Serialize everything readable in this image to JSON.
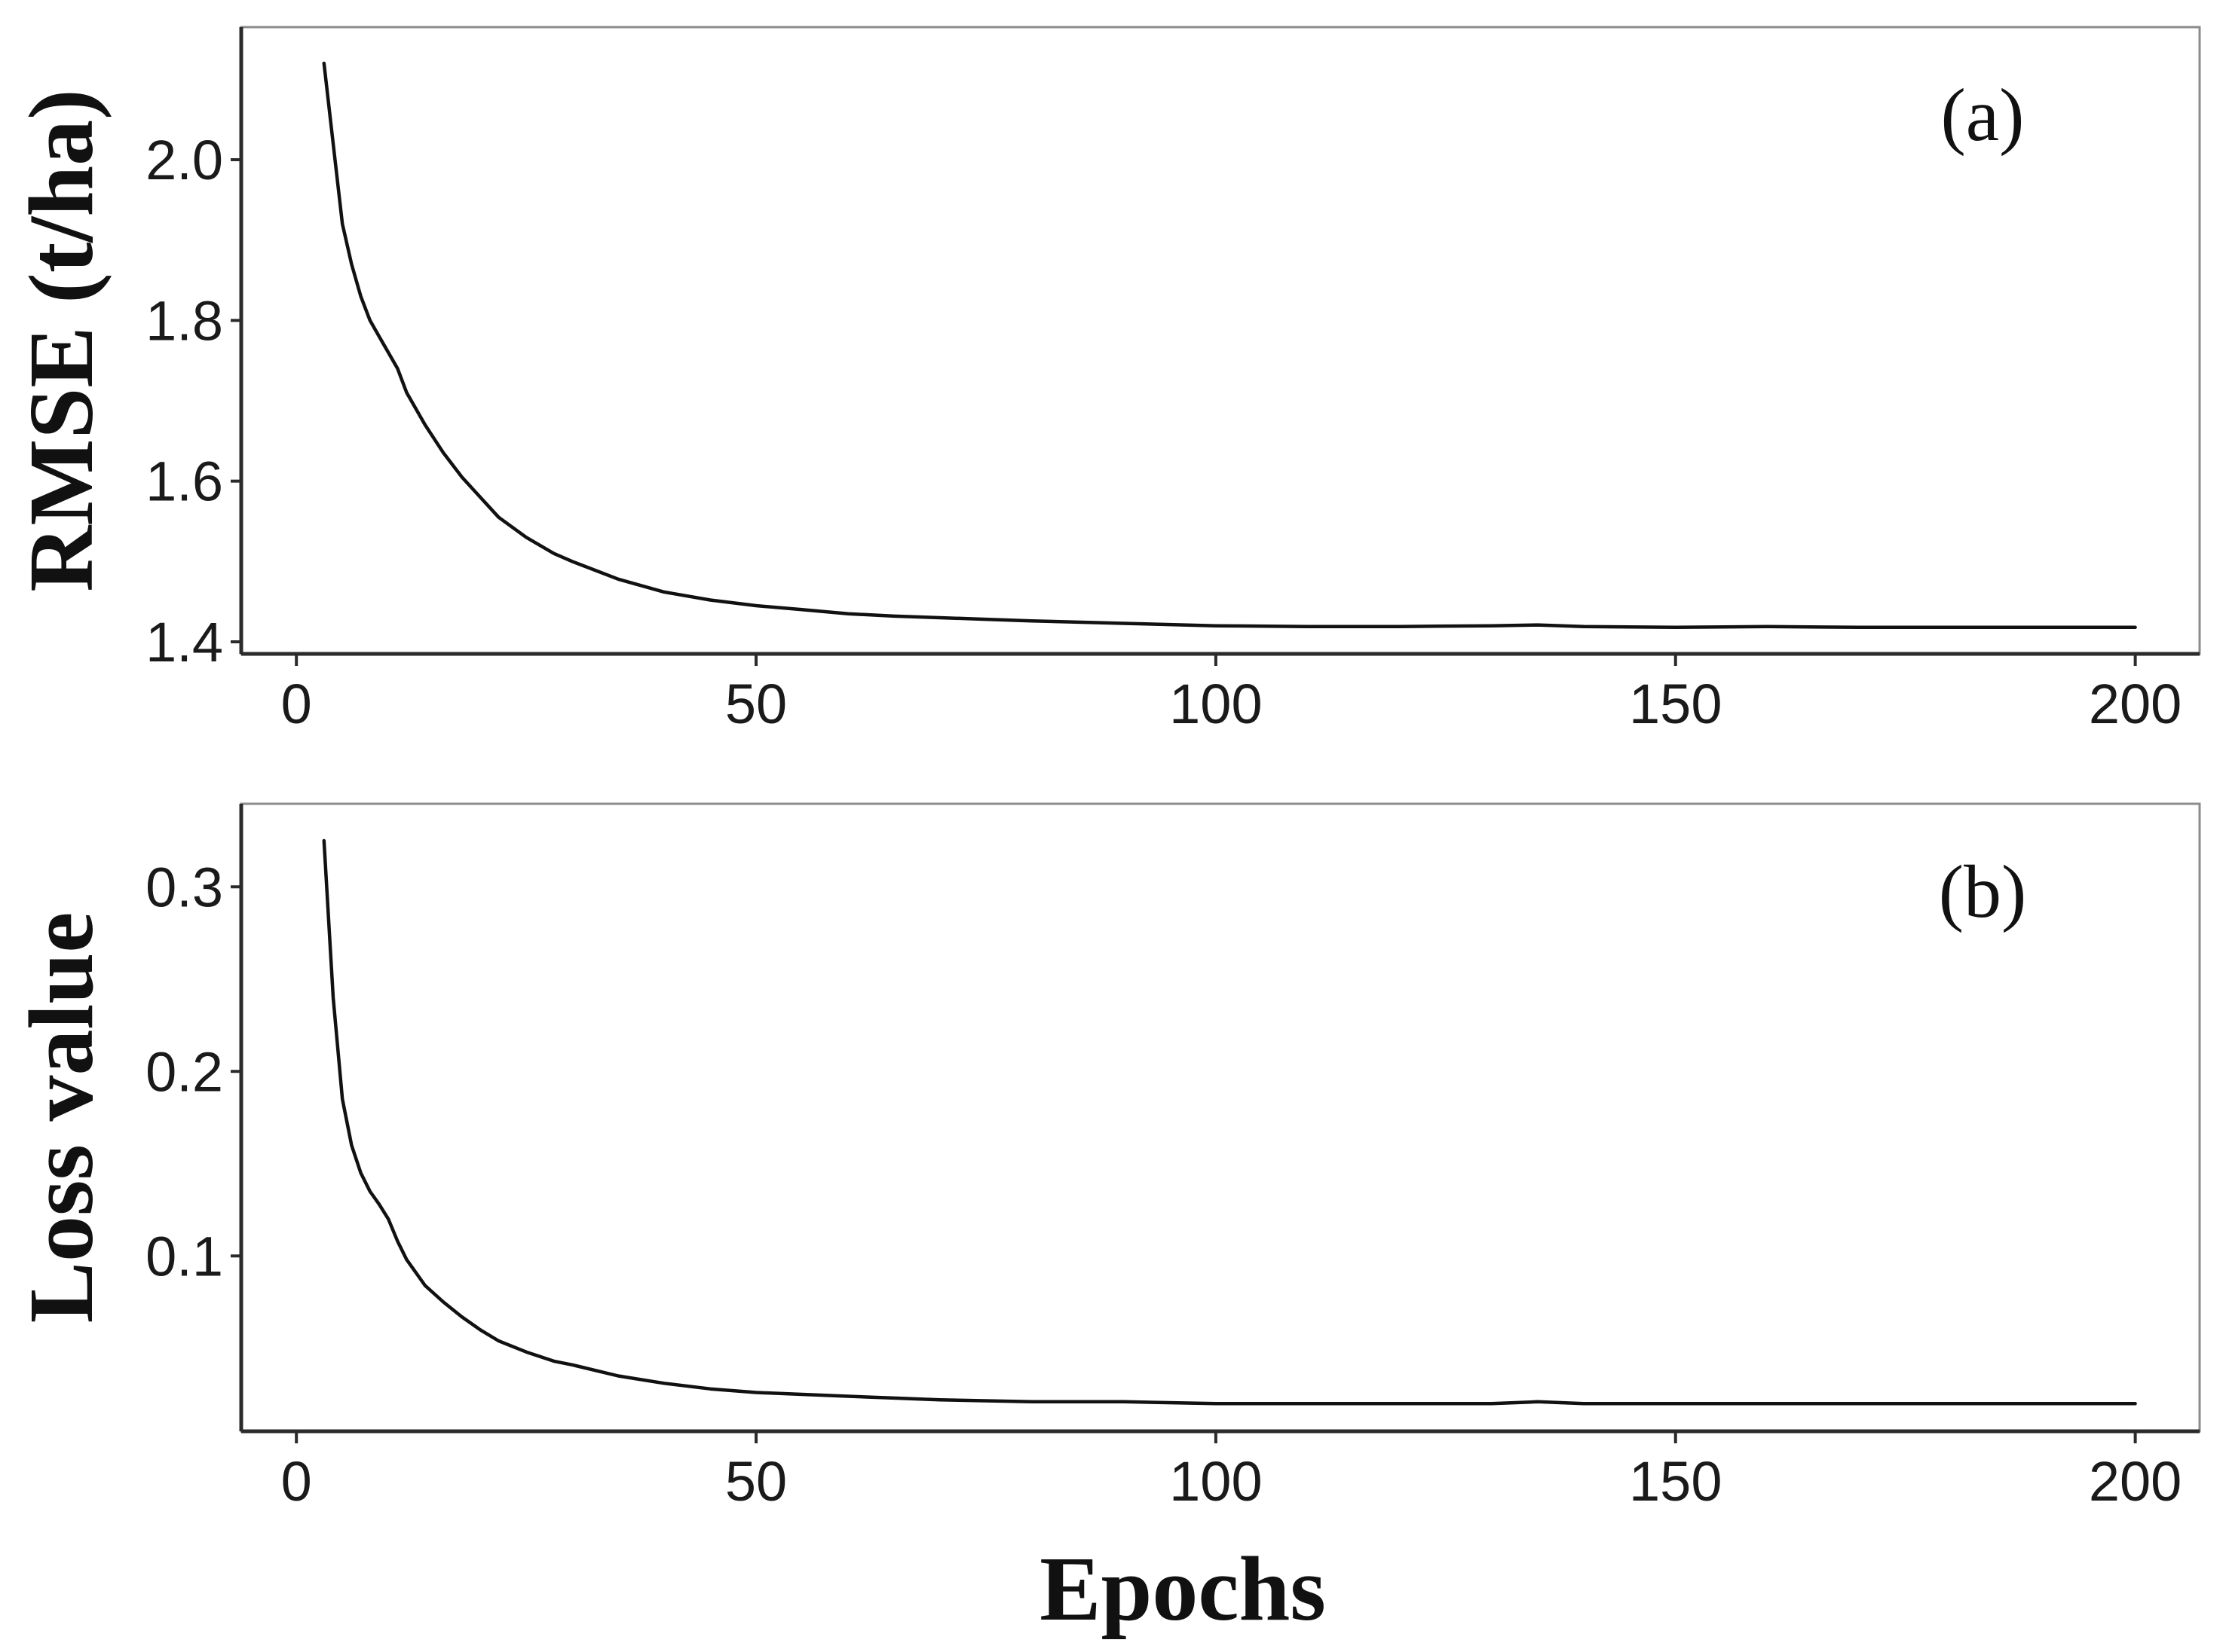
{
  "chart_data": [
    {
      "type": "line",
      "panel_label": "(a)",
      "xlabel": "",
      "ylabel": "RMSE (t/ha)",
      "xlim": [
        -6,
        207
      ],
      "ylim": [
        1.385,
        2.165
      ],
      "x_ticks": [
        0,
        50,
        100,
        150,
        200
      ],
      "y_ticks": [
        1.4,
        1.6,
        1.8,
        2.0
      ],
      "y_tick_labels": [
        "1.4",
        "1.6",
        "1.8",
        "2.0"
      ],
      "grid": false,
      "series": [
        {
          "color": "#111111",
          "x": [
            3,
            4,
            5,
            6,
            7,
            8,
            9,
            10,
            11,
            12,
            14,
            16,
            18,
            20,
            22,
            25,
            28,
            30,
            35,
            40,
            45,
            50,
            55,
            60,
            65,
            70,
            75,
            80,
            90,
            100,
            110,
            120,
            130,
            135,
            140,
            150,
            160,
            170,
            180,
            190,
            200
          ],
          "y": [
            2.12,
            2.02,
            1.92,
            1.87,
            1.83,
            1.8,
            1.78,
            1.76,
            1.74,
            1.71,
            1.67,
            1.635,
            1.605,
            1.58,
            1.555,
            1.53,
            1.51,
            1.5,
            1.478,
            1.462,
            1.452,
            1.445,
            1.44,
            1.435,
            1.432,
            1.43,
            1.428,
            1.426,
            1.423,
            1.42,
            1.419,
            1.419,
            1.42,
            1.421,
            1.419,
            1.418,
            1.419,
            1.418,
            1.418,
            1.418,
            1.418
          ]
        }
      ]
    },
    {
      "type": "line",
      "panel_label": "(b)",
      "xlabel": "Epochs",
      "ylabel": "Loss value",
      "xlim": [
        -6,
        207
      ],
      "ylim": [
        0.005,
        0.345
      ],
      "x_ticks": [
        0,
        50,
        100,
        150,
        200
      ],
      "y_ticks": [
        0.1,
        0.2,
        0.3
      ],
      "y_tick_labels": [
        "0.1",
        "0.2",
        "0.3"
      ],
      "grid": false,
      "series": [
        {
          "color": "#111111",
          "x": [
            3,
            4,
            5,
            6,
            7,
            8,
            9,
            10,
            11,
            12,
            14,
            16,
            18,
            20,
            22,
            25,
            28,
            30,
            35,
            40,
            45,
            50,
            55,
            60,
            65,
            70,
            80,
            90,
            100,
            110,
            120,
            130,
            135,
            140,
            150,
            160,
            170,
            180,
            190,
            200
          ],
          "y": [
            0.325,
            0.24,
            0.185,
            0.16,
            0.145,
            0.135,
            0.128,
            0.12,
            0.108,
            0.098,
            0.084,
            0.075,
            0.067,
            0.06,
            0.054,
            0.048,
            0.043,
            0.041,
            0.035,
            0.031,
            0.028,
            0.026,
            0.025,
            0.024,
            0.023,
            0.022,
            0.021,
            0.021,
            0.02,
            0.02,
            0.02,
            0.02,
            0.021,
            0.02,
            0.02,
            0.02,
            0.02,
            0.02,
            0.02,
            0.02
          ]
        }
      ]
    }
  ]
}
